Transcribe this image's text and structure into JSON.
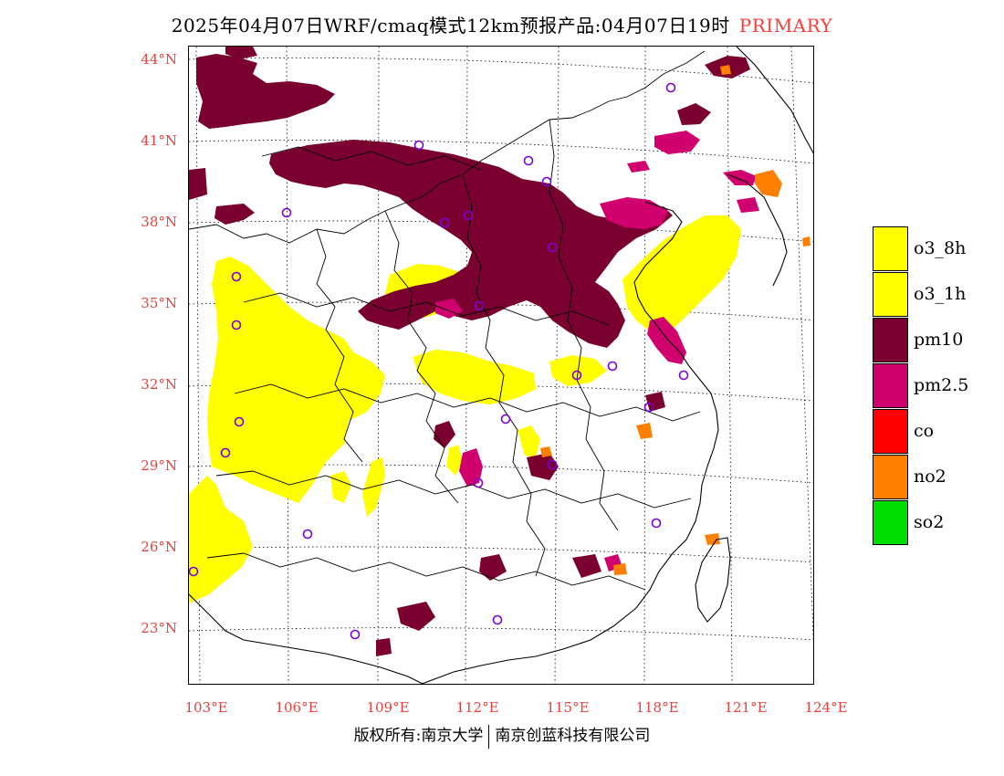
{
  "title": {
    "text": "2025年04月07日WRF/cmaq模式12km预报产品:04月07日19时",
    "tag": "PRIMARY"
  },
  "lat_labels": [
    "44°N",
    "41°N",
    "38°N",
    "35°N",
    "32°N",
    "29°N",
    "26°N",
    "23°N"
  ],
  "lon_labels": [
    "103°E",
    "106°E",
    "109°E",
    "112°E",
    "115°E",
    "118°E",
    "121°E",
    "124°E"
  ],
  "legend": [
    {
      "label": "o3_8h",
      "color": "#ffff00"
    },
    {
      "label": "o3_1h",
      "color": "#ffff00"
    },
    {
      "label": "pm10",
      "color": "#7a0030"
    },
    {
      "label": "pm2.5",
      "color": "#d1006f"
    },
    {
      "label": "co",
      "color": "#ff0000"
    },
    {
      "label": "no2",
      "color": "#ff7f00"
    },
    {
      "label": "so2",
      "color": "#00dd00"
    }
  ],
  "footer": {
    "left": "版权所有:南京大学",
    "right": "南京创蓝科技有限公司"
  },
  "colors": {
    "o3": "#ffff00",
    "pm10": "#7a0030",
    "pm25": "#d1006f",
    "no2": "#ff7f00",
    "station": "#7b00d6",
    "axis_label": "#e8423f"
  }
}
